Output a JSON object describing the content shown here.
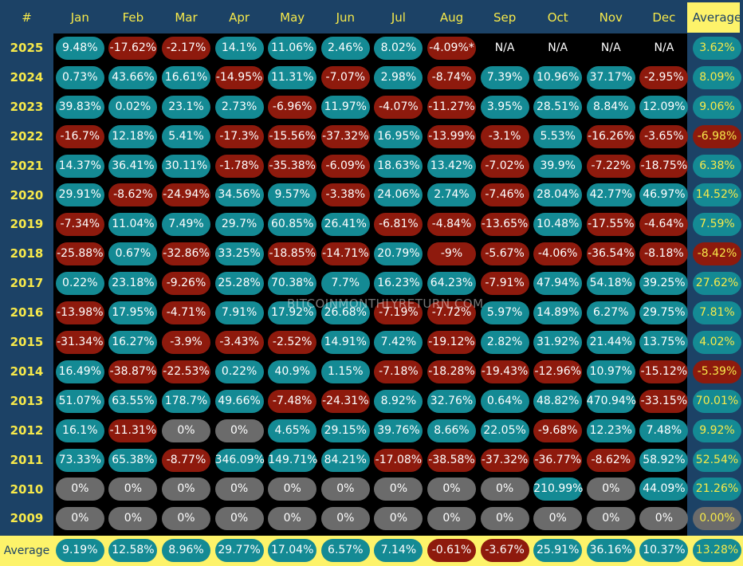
{
  "chart_data": {
    "type": "heatmap",
    "corner_label": "#",
    "columns": [
      "Jan",
      "Feb",
      "Mar",
      "Apr",
      "May",
      "Jun",
      "Jul",
      "Aug",
      "Sep",
      "Oct",
      "Nov",
      "Dec",
      "Average"
    ],
    "rows": [
      {
        "year": "2025",
        "values": [
          "9.48%",
          "-17.62%",
          "-2.17%",
          "14.1%",
          "11.06%",
          "2.46%",
          "8.02%",
          "-4.09%*",
          "N/A",
          "N/A",
          "N/A",
          "N/A",
          "3.62%"
        ]
      },
      {
        "year": "2024",
        "values": [
          "0.73%",
          "43.66%",
          "16.61%",
          "-14.95%",
          "11.31%",
          "-7.07%",
          "2.98%",
          "-8.74%",
          "7.39%",
          "10.96%",
          "37.17%",
          "-2.95%",
          "8.09%"
        ]
      },
      {
        "year": "2023",
        "values": [
          "39.83%",
          "0.02%",
          "23.1%",
          "2.73%",
          "-6.96%",
          "11.97%",
          "-4.07%",
          "-11.27%",
          "3.95%",
          "28.51%",
          "8.84%",
          "12.09%",
          "9.06%"
        ]
      },
      {
        "year": "2022",
        "values": [
          "-16.7%",
          "12.18%",
          "5.41%",
          "-17.3%",
          "-15.56%",
          "-37.32%",
          "16.95%",
          "-13.99%",
          "-3.1%",
          "5.53%",
          "-16.26%",
          "-3.65%",
          "-6.98%"
        ]
      },
      {
        "year": "2021",
        "values": [
          "14.37%",
          "36.41%",
          "30.11%",
          "-1.78%",
          "-35.38%",
          "-6.09%",
          "18.63%",
          "13.42%",
          "-7.02%",
          "39.9%",
          "-7.22%",
          "-18.75%",
          "6.38%"
        ]
      },
      {
        "year": "2020",
        "values": [
          "29.91%",
          "-8.62%",
          "-24.94%",
          "34.56%",
          "9.57%",
          "-3.38%",
          "24.06%",
          "2.74%",
          "-7.46%",
          "28.04%",
          "42.77%",
          "46.97%",
          "14.52%"
        ]
      },
      {
        "year": "2019",
        "values": [
          "-7.34%",
          "11.04%",
          "7.49%",
          "29.7%",
          "60.85%",
          "26.41%",
          "-6.81%",
          "-4.84%",
          "-13.65%",
          "10.48%",
          "-17.55%",
          "-4.64%",
          "7.59%"
        ]
      },
      {
        "year": "2018",
        "values": [
          "-25.88%",
          "0.67%",
          "-32.86%",
          "33.25%",
          "-18.85%",
          "-14.71%",
          "20.79%",
          "-9%",
          "-5.67%",
          "-4.06%",
          "-36.54%",
          "-8.18%",
          "-8.42%"
        ]
      },
      {
        "year": "2017",
        "values": [
          "0.22%",
          "23.18%",
          "-9.26%",
          "25.28%",
          "70.38%",
          "7.7%",
          "16.23%",
          "64.23%",
          "-7.91%",
          "47.94%",
          "54.18%",
          "39.25%",
          "27.62%"
        ]
      },
      {
        "year": "2016",
        "values": [
          "-13.98%",
          "17.95%",
          "-4.71%",
          "7.91%",
          "17.92%",
          "26.68%",
          "-7.19%",
          "-7.72%",
          "5.97%",
          "14.89%",
          "6.27%",
          "29.75%",
          "7.81%"
        ]
      },
      {
        "year": "2015",
        "values": [
          "-31.34%",
          "16.27%",
          "-3.9%",
          "-3.43%",
          "-2.52%",
          "14.91%",
          "7.42%",
          "-19.12%",
          "2.82%",
          "31.92%",
          "21.44%",
          "13.75%",
          "4.02%"
        ]
      },
      {
        "year": "2014",
        "values": [
          "16.49%",
          "-38.87%",
          "-22.53%",
          "0.22%",
          "40.9%",
          "1.15%",
          "-7.18%",
          "-18.28%",
          "-19.43%",
          "-12.96%",
          "10.97%",
          "-15.12%",
          "-5.39%"
        ]
      },
      {
        "year": "2013",
        "values": [
          "51.07%",
          "63.55%",
          "178.7%",
          "49.66%",
          "-7.48%",
          "-24.31%",
          "8.92%",
          "32.76%",
          "0.64%",
          "48.82%",
          "470.94%",
          "-33.15%",
          "70.01%"
        ]
      },
      {
        "year": "2012",
        "values": [
          "16.1%",
          "-11.31%",
          "0%",
          "0%",
          "4.65%",
          "29.15%",
          "39.76%",
          "8.66%",
          "22.05%",
          "-9.68%",
          "12.23%",
          "7.48%",
          "9.92%"
        ]
      },
      {
        "year": "2011",
        "values": [
          "73.33%",
          "65.38%",
          "-8.77%",
          "346.09%",
          "149.71%",
          "84.21%",
          "-17.08%",
          "-38.58%",
          "-37.32%",
          "-36.77%",
          "-8.62%",
          "58.92%",
          "52.54%"
        ]
      },
      {
        "year": "2010",
        "values": [
          "0%",
          "0%",
          "0%",
          "0%",
          "0%",
          "0%",
          "0%",
          "0%",
          "0%",
          "210.99%",
          "0%",
          "44.09%",
          "21.26%"
        ]
      },
      {
        "year": "2009",
        "values": [
          "0%",
          "0%",
          "0%",
          "0%",
          "0%",
          "0%",
          "0%",
          "0%",
          "0%",
          "0%",
          "0%",
          "0%",
          "0.00%"
        ]
      }
    ],
    "footer": {
      "label": "Average",
      "values": [
        "9.19%",
        "12.58%",
        "8.96%",
        "29.77%",
        "17.04%",
        "6.57%",
        "7.14%",
        "-0.61%",
        "-3.67%",
        "25.91%",
        "36.16%",
        "10.37%",
        "13.28%"
      ]
    },
    "watermark": "BITCOINMONTHLYRETURN.COM",
    "colors": {
      "positive": "#148a94",
      "negative": "#8e1a0d",
      "zero": "#6b6b6b",
      "header_text": "#f7e94a",
      "header_bg": "#1c4266",
      "highlight": "#fdf36a",
      "background": "#000000"
    }
  }
}
